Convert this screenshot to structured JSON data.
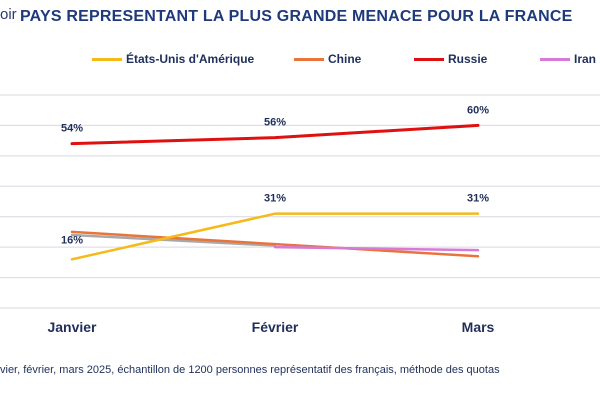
{
  "header": {
    "logo_fragment": "oir",
    "title": "PAYS REPRESENTANT LA PLUS GRANDE MENACE POUR LA FRANCE"
  },
  "footer": {
    "note": "vier, février, mars 2025, échantillon de 1200 personnes représentatif des français, méthode des quotas"
  },
  "chart_data": {
    "type": "line",
    "title": "PAYS REPRESENTANT LA PLUS GRANDE MENACE POUR LA FRANCE",
    "categories": [
      "Janvier",
      "Février",
      "Mars"
    ],
    "xlabel": "",
    "ylabel": "",
    "ylim": [
      0,
      70
    ],
    "grid": true,
    "legend_position": "top",
    "series": [
      {
        "name": "États-Unis d'Amérique",
        "color": "#f5b918",
        "values": [
          16,
          31,
          31
        ],
        "labels": [
          "16%",
          "31%",
          "31%"
        ]
      },
      {
        "name": "Chine",
        "color": "#e8743b",
        "values": [
          25,
          21,
          17
        ],
        "labels": [
          "",
          "",
          ""
        ]
      },
      {
        "name": "Russie",
        "color": "#e01010",
        "values": [
          54,
          56,
          60
        ],
        "labels": [
          "54%",
          "56%",
          "60%"
        ]
      },
      {
        "name": "Iran",
        "color": "#d67ad6",
        "values": [
          null,
          20,
          19
        ],
        "labels": [
          "",
          "",
          ""
        ]
      },
      {
        "name": "",
        "color": "#a8a8a8",
        "values": [
          24,
          20.5,
          null
        ],
        "labels": [
          "",
          "",
          ""
        ]
      }
    ]
  }
}
